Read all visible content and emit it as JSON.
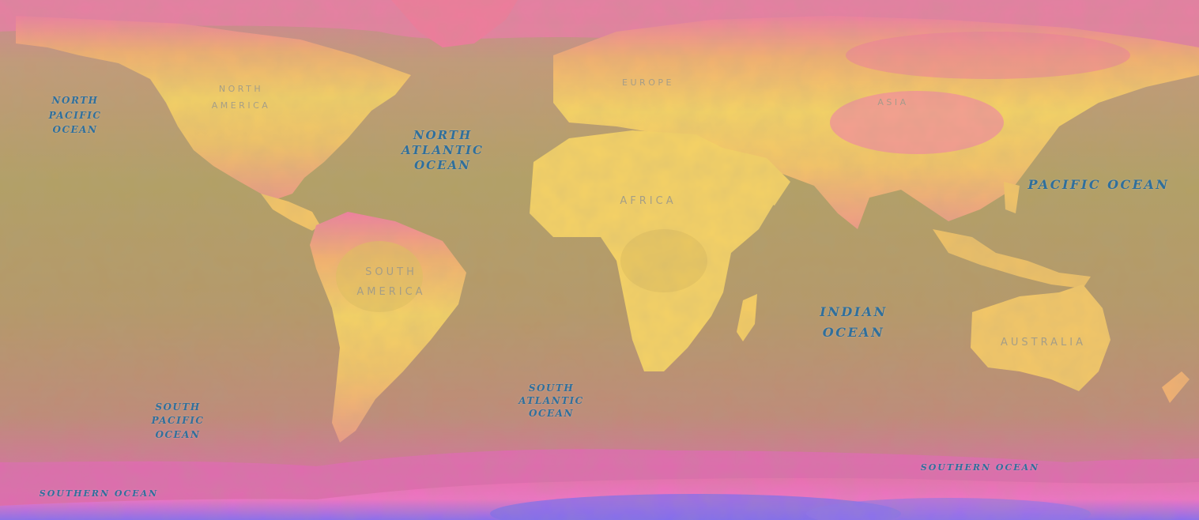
{
  "map": {
    "ocean_labels": {
      "north_pacific": "NORTH\nPACIFIC\nOCEAN",
      "north_atlantic": "NORTH\nATLANTIC\nOCEAN",
      "pacific": "PACIFIC OCEAN",
      "indian": "INDIAN\nOCEAN",
      "south_atlantic": "SOUTH\nATLANTIC\nOCEAN",
      "south_pacific": "SOUTH\nPACIFIC\nOCEAN",
      "southern_west": "SOUTHERN OCEAN",
      "southern_east": "SOUTHERN OCEAN"
    },
    "continent_labels": {
      "north_america": "NORTH\nAMERICA",
      "europe": "EUROPE",
      "asia": "ASIA",
      "africa": "AFRICA",
      "south_america": "SOUTH\nAMERICA",
      "australia": "AUSTRALIA"
    },
    "colors": {
      "ocean": "#b49b6a",
      "land_warm": "#f5cc62",
      "land_cool": "#f09a80",
      "polar": "#ee6fb4",
      "ice": "#8f6ff0",
      "label_ocean": "#2f6f9c",
      "label_land": "#9e9a8a"
    }
  }
}
